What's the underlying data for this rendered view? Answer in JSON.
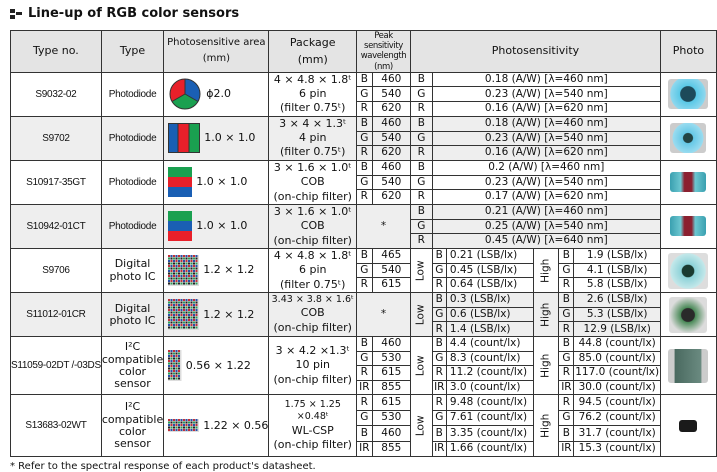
{
  "title": "Line-up of RGB color sensors",
  "headers": {
    "type_no": "Type no.",
    "type": "Type",
    "area": "Photosensitive area (mm)",
    "package": "Package (mm)",
    "peak": "Peak sensitivity wavelength (nm)",
    "sensitivity": "Photosensitivity",
    "photo": "Photo"
  },
  "footnote": "* Refer to the spectral response of each product's datasheet.",
  "colors": {
    "red": "#e8202a",
    "green": "#1aa050",
    "blue": "#1a5fb4",
    "header_bg": "#e4e4e4",
    "shade_bg": "#eeeeee"
  },
  "products": [
    {
      "type_no": "S9032-02",
      "type": "Photodiode",
      "area": "ϕ2.0",
      "area_icon": "pie",
      "package": [
        "4 × 4.8 × 1.8ᵗ",
        "6 pin",
        "(filter 0.75ᵗ)"
      ],
      "peak": [
        [
          "B",
          "460"
        ],
        [
          "G",
          "540"
        ],
        [
          "R",
          "620"
        ]
      ],
      "sens": {
        "mode": "single",
        "rows": [
          [
            "B",
            "0.18 (A/W) [λ=460 nm]"
          ],
          [
            "G",
            "0.23 (A/W) [λ=540 nm]"
          ],
          [
            "R",
            "0.16 (A/W) [λ=620 nm]"
          ]
        ]
      },
      "photo": "round-window-chip"
    },
    {
      "type_no": "S9702",
      "type": "Photodiode",
      "area": "1.0 × 1.0",
      "area_icon": "vstripes",
      "package": [
        "3 × 4 × 1.3ᵗ",
        "4 pin",
        "(filter 0.75ᵗ)"
      ],
      "peak": [
        [
          "B",
          "460"
        ],
        [
          "G",
          "540"
        ],
        [
          "R",
          "620"
        ]
      ],
      "sens": {
        "mode": "single",
        "rows": [
          [
            "B",
            "0.18 (A/W) [λ=460 nm]"
          ],
          [
            "G",
            "0.23 (A/W) [λ=540 nm]"
          ],
          [
            "R",
            "0.16 (A/W) [λ=620 nm]"
          ]
        ]
      },
      "photo": "square-window-chip"
    },
    {
      "type_no": "S10917-35GT",
      "type": "Photodiode",
      "area": "1.0 × 1.0",
      "area_icon": "hstripes-grb",
      "package": [
        "3 × 1.6 × 1.0ᵗ",
        "COB",
        "(on-chip filter)"
      ],
      "peak": [
        [
          "B",
          "460"
        ],
        [
          "G",
          "540"
        ],
        [
          "R",
          "620"
        ]
      ],
      "sens": {
        "mode": "single",
        "rows": [
          [
            "B",
            "0.2 (A/W) [λ=460 nm]"
          ],
          [
            "G",
            "0.23 (A/W) [λ=540 nm]"
          ],
          [
            "R",
            "0.17 (A/W) [λ=620 nm]"
          ]
        ]
      },
      "photo": "cob-chip"
    },
    {
      "type_no": "S10942-01CT",
      "type": "Photodiode",
      "area": "1.0 × 1.0",
      "area_icon": "hstripes-gbr",
      "package": [
        "3 × 1.6 × 1.0ᵗ",
        "COB",
        "(on-chip filter)"
      ],
      "peak": "*",
      "sens": {
        "mode": "single",
        "rows": [
          [
            "B",
            "0.21 (A/W) [λ=460 nm]"
          ],
          [
            "G",
            "0.25 (A/W) [λ=540 nm]"
          ],
          [
            "R",
            "0.45 (A/W) [λ=640 nm]"
          ]
        ]
      },
      "photo": "cob-chip"
    },
    {
      "type_no": "S9706",
      "type": "Digital photo IC",
      "area": "1.2 × 1.2",
      "area_icon": "mosaic",
      "package": [
        "4 × 4.8 × 1.8ᵗ",
        "6 pin",
        "(filter 0.75ᵗ)"
      ],
      "peak": [
        [
          "B",
          "465"
        ],
        [
          "G",
          "540"
        ],
        [
          "R",
          "615"
        ]
      ],
      "sens": {
        "mode": "dual",
        "low_label": "Low",
        "high_label": "High",
        "low": [
          [
            "B",
            "0.21 (LSB/lx)"
          ],
          [
            "G",
            "0.45 (LSB/lx)"
          ],
          [
            "R",
            "0.64 (LSB/lx)"
          ]
        ],
        "high": [
          [
            "B",
            "1.9 (LSB/lx)"
          ],
          [
            "G",
            "4.1 (LSB/lx)"
          ],
          [
            "R",
            "5.8 (LSB/lx)"
          ]
        ]
      },
      "photo": "ic-chip"
    },
    {
      "type_no": "S11012-01CR",
      "type": "Digital photo IC",
      "area": "1.2 × 1.2",
      "area_icon": "mosaic",
      "package": [
        "3.43 × 3.8 × 1.6ᵗ",
        "COB",
        "(on-chip filter)"
      ],
      "peak": "*",
      "sens": {
        "mode": "dual",
        "low_label": "Low",
        "high_label": "High",
        "low": [
          [
            "B",
            "0.3 (LSB/lx)"
          ],
          [
            "G",
            "0.6 (LSB/lx)"
          ],
          [
            "R",
            "1.4 (LSB/lx)"
          ]
        ],
        "high": [
          [
            "B",
            "2.6 (LSB/lx)"
          ],
          [
            "G",
            "5.3 (LSB/lx)"
          ],
          [
            "R",
            "12.9 (LSB/lx)"
          ]
        ]
      },
      "photo": "cob-ic-chip"
    },
    {
      "type_no": "S11059-02DT /-03DS",
      "type": "I²C compatible color sensor",
      "area": "0.56 × 1.22",
      "area_icon": "mosaic-tall",
      "package": [
        "3 × 4.2 ×1.3ᵗ",
        "10 pin",
        "(on-chip filter)"
      ],
      "peak": [
        [
          "B",
          "460"
        ],
        [
          "G",
          "530"
        ],
        [
          "R",
          "615"
        ],
        [
          "IR",
          "855"
        ]
      ],
      "sens": {
        "mode": "dual",
        "low_label": "Low",
        "high_label": "High",
        "low": [
          [
            "B",
            "4.4 (count/lx)"
          ],
          [
            "G",
            "8.3 (count/lx)"
          ],
          [
            "R",
            "11.2 (count/lx)"
          ],
          [
            "IR",
            "3.0 (count/lx)"
          ]
        ],
        "high": [
          [
            "B",
            "44.8 (count/lx)"
          ],
          [
            "G",
            "85.0 (count/lx)"
          ],
          [
            "R",
            "117.0 (count/lx)"
          ],
          [
            "IR",
            "30.0 (count/lx)"
          ]
        ]
      },
      "photo": "tssop-chip"
    },
    {
      "type_no": "S13683-02WT",
      "type": "I²C compatible color sensor",
      "area": "1.22 × 0.56",
      "area_icon": "mosaic-wide",
      "package": [
        "1.75 × 1.25 ×0.48ᵗ",
        "WL-CSP",
        "(on-chip filter)"
      ],
      "peak": [
        [
          "R",
          "615"
        ],
        [
          "G",
          "530"
        ],
        [
          "B",
          "460"
        ],
        [
          "IR",
          "855"
        ]
      ],
      "sens": {
        "mode": "dual",
        "low_label": "Low",
        "high_label": "High",
        "low": [
          [
            "R",
            "9.48 (count/lx)"
          ],
          [
            "G",
            "7.61 (count/lx)"
          ],
          [
            "B",
            "3.35 (count/lx)"
          ],
          [
            "IR",
            "1.66 (count/lx)"
          ]
        ],
        "high": [
          [
            "R",
            "94.5 (count/lx)"
          ],
          [
            "G",
            "76.2 (count/lx)"
          ],
          [
            "B",
            "31.7 (count/lx)"
          ],
          [
            "IR",
            "15.3 (count/lx)"
          ]
        ]
      },
      "photo": "csp-chip"
    }
  ]
}
